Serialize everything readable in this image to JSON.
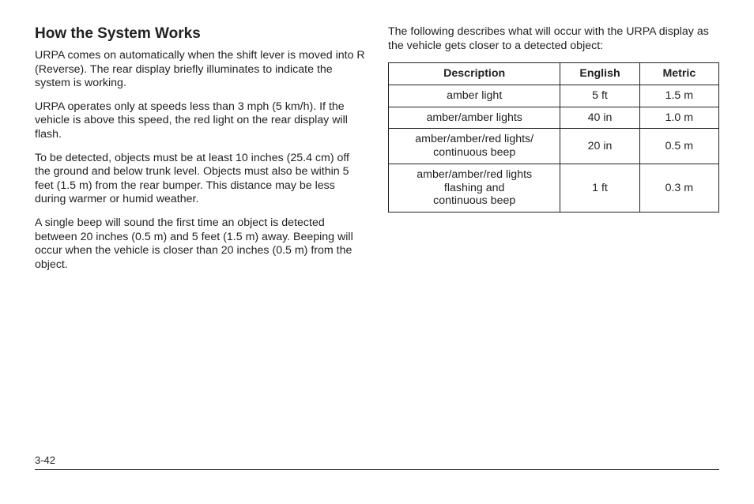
{
  "left": {
    "heading": "How the System Works",
    "paragraphs": [
      "URPA comes on automatically when the shift lever is moved into R (Reverse). The rear display briefly illuminates to indicate the system is working.",
      "URPA operates only at speeds less than 3 mph (5 km/h). If the vehicle is above this speed, the red light on the rear display will flash.",
      "To be detected, objects must be at least 10 inches (25.4 cm) off the ground and below trunk level. Objects must also be within 5 feet (1.5 m) from the rear bumper. This distance may be less during warmer or humid weather.",
      "A single beep will sound the first time an object is detected between 20 inches (0.5 m) and 5 feet (1.5 m) away. Beeping will occur when the vehicle is closer than 20 inches (0.5 m) from the object."
    ]
  },
  "right": {
    "intro": "The following describes what will occur with the URPA display as the vehicle gets closer to a detected object:",
    "table": {
      "head": {
        "c0": "Description",
        "c1": "English",
        "c2": "Metric"
      },
      "rows": [
        {
          "c0": "amber light",
          "c1": "5 ft",
          "c2": "1.5 m"
        },
        {
          "c0": "amber/amber lights",
          "c1": "40 in",
          "c2": "1.0 m"
        },
        {
          "c0": "amber/amber/red lights/\ncontinuous beep",
          "c1": "20 in",
          "c2": "0.5 m"
        },
        {
          "c0": "amber/amber/red lights\nflashing and\ncontinuous beep",
          "c1": "1 ft",
          "c2": "0.3 m"
        }
      ]
    }
  },
  "footer": {
    "pageNumber": "3-42"
  }
}
